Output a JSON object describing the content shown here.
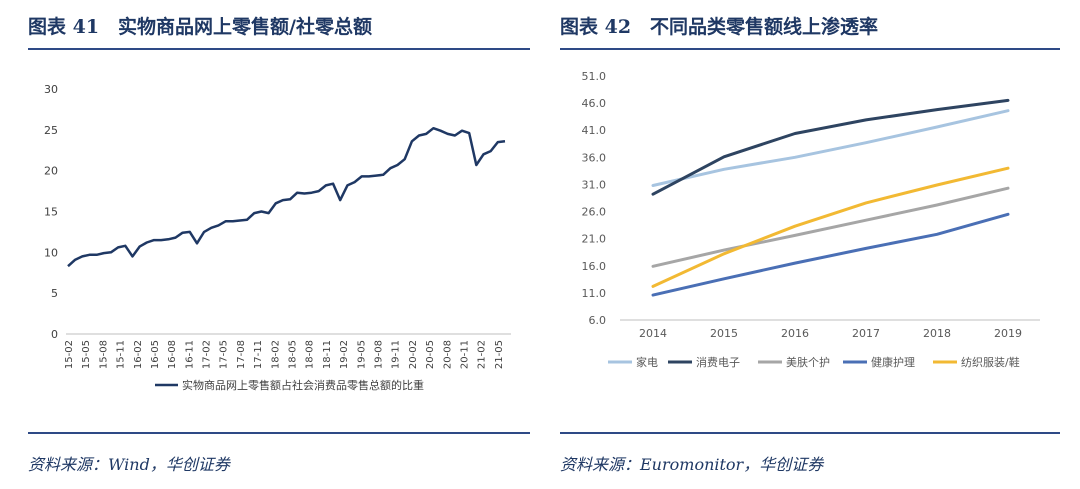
{
  "left": {
    "title": "图表 41　实物商品网上零售额/社零总额",
    "source": "资料来源：Wind，华创证券"
  },
  "right": {
    "title": "图表 42　不同品类零售额线上渗透率",
    "source": "资料来源：Euromonitor，华创证券"
  },
  "colors": {
    "navy": "#1f3864",
    "line_left": "#1f3864",
    "家电": "#a7c4e0",
    "消费电子": "#2e4461",
    "美肤个护": "#a6a6a6",
    "健康护理": "#4a6fb5",
    "纺织服装/鞋": "#f2b933"
  },
  "chart_data": [
    {
      "type": "line",
      "ylim": [
        0,
        30
      ],
      "yticks": [
        0,
        5,
        10,
        15,
        20,
        25,
        30
      ],
      "x_tick_labels": [
        "15-02",
        "15-05",
        "15-08",
        "15-11",
        "16-02",
        "16-05",
        "16-08",
        "16-11",
        "17-02",
        "17-05",
        "17-08",
        "17-11",
        "18-02",
        "18-05",
        "18-08",
        "18-11",
        "19-02",
        "19-05",
        "19-08",
        "19-11",
        "20-02",
        "20-05",
        "20-08",
        "20-11",
        "21-02",
        "21-05"
      ],
      "grid": false,
      "legend": "bottom",
      "series": [
        {
          "name": "实物商品网上零售额占社会消费品零售总额的比重",
          "values": [
            8.3,
            9.1,
            9.5,
            9.7,
            9.7,
            9.9,
            10.0,
            10.6,
            10.8,
            9.5,
            10.7,
            11.2,
            11.5,
            11.5,
            11.6,
            11.8,
            12.4,
            12.5,
            11.1,
            12.5,
            13.0,
            13.3,
            13.8,
            13.8,
            13.9,
            14.0,
            14.8,
            15.0,
            14.8,
            16.0,
            16.4,
            16.5,
            17.3,
            17.2,
            17.3,
            17.5,
            18.2,
            18.4,
            16.4,
            18.2,
            18.6,
            19.3,
            19.3,
            19.4,
            19.5,
            20.3,
            20.7,
            21.4,
            23.6,
            24.3,
            24.5,
            25.2,
            24.9,
            24.5,
            24.3,
            24.9,
            24.6,
            20.7,
            22.0,
            22.4,
            23.5,
            23.6
          ]
        }
      ]
    },
    {
      "type": "line",
      "ylim": [
        6.0,
        51.0
      ],
      "yticks": [
        "6.0",
        "11.0",
        "16.0",
        "21.0",
        "26.0",
        "31.0",
        "36.0",
        "41.0",
        "46.0",
        "51.0"
      ],
      "categories": [
        "2014",
        "2015",
        "2016",
        "2017",
        "2018",
        "2019"
      ],
      "grid": false,
      "legend": "bottom",
      "series": [
        {
          "name": "家电",
          "values": [
            30.8,
            33.8,
            36.0,
            38.7,
            41.6,
            44.6
          ]
        },
        {
          "name": "消费电子",
          "values": [
            29.2,
            36.1,
            40.4,
            42.9,
            44.8,
            46.5
          ]
        },
        {
          "name": "美肤个护",
          "values": [
            15.9,
            18.9,
            21.6,
            24.4,
            27.2,
            30.3
          ]
        },
        {
          "name": "健康护理",
          "values": [
            10.6,
            13.6,
            16.5,
            19.2,
            21.8,
            25.5
          ]
        },
        {
          "name": "纺织服装/鞋",
          "values": [
            12.2,
            18.2,
            23.3,
            27.6,
            30.9,
            34.0
          ]
        }
      ]
    }
  ]
}
